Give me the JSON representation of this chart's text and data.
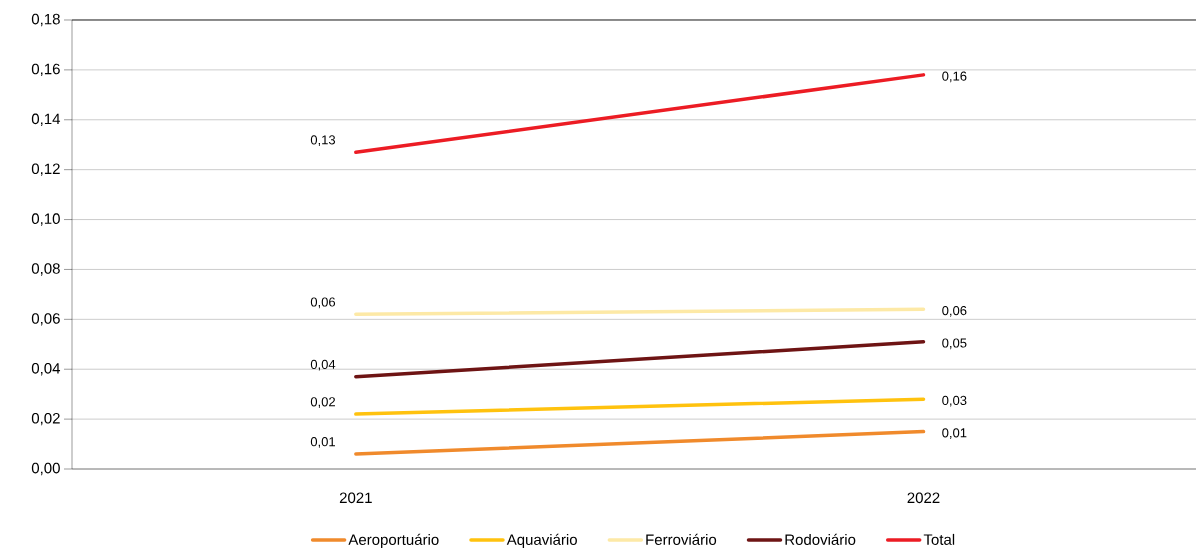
{
  "chart_data": {
    "type": "line",
    "categories": [
      "2021",
      "2022"
    ],
    "series": [
      {
        "name": "Aeroportuário",
        "color": "#f08a2c",
        "values": [
          0.006,
          0.015
        ],
        "value_labels": [
          "0,01",
          "0,01"
        ]
      },
      {
        "name": "Aquaviário",
        "color": "#ffc20e",
        "values": [
          0.022,
          0.028
        ],
        "value_labels": [
          "0,02",
          "0,03"
        ]
      },
      {
        "name": "Ferroviário",
        "color": "#fde9a6",
        "values": [
          0.062,
          0.064
        ],
        "value_labels": [
          "0,06",
          "0,06"
        ]
      },
      {
        "name": "Rodoviário",
        "color": "#6e1414",
        "values": [
          0.037,
          0.051
        ],
        "value_labels": [
          "0,04",
          "0,05"
        ]
      },
      {
        "name": "Total",
        "color": "#ec1c24",
        "values": [
          0.127,
          0.158
        ],
        "value_labels": [
          "0,13",
          "0,16"
        ]
      }
    ],
    "ylim": [
      0,
      0.18
    ],
    "yticks": [
      {
        "value": 0,
        "label": "0,00"
      },
      {
        "value": 0.02,
        "label": "0,02"
      },
      {
        "value": 0.04,
        "label": "0,04"
      },
      {
        "value": 0.06,
        "label": "0,06"
      },
      {
        "value": 0.08,
        "label": "0,08"
      },
      {
        "value": 0.1,
        "label": "0,10"
      },
      {
        "value": 0.12,
        "label": "0,12"
      },
      {
        "value": 0.14,
        "label": "0,14"
      },
      {
        "value": 0.16,
        "label": "0,16"
      },
      {
        "value": 0.18,
        "label": "0,18"
      }
    ],
    "grid": "y",
    "legend": "bottom",
    "marker": "none",
    "line_style": "solid"
  }
}
